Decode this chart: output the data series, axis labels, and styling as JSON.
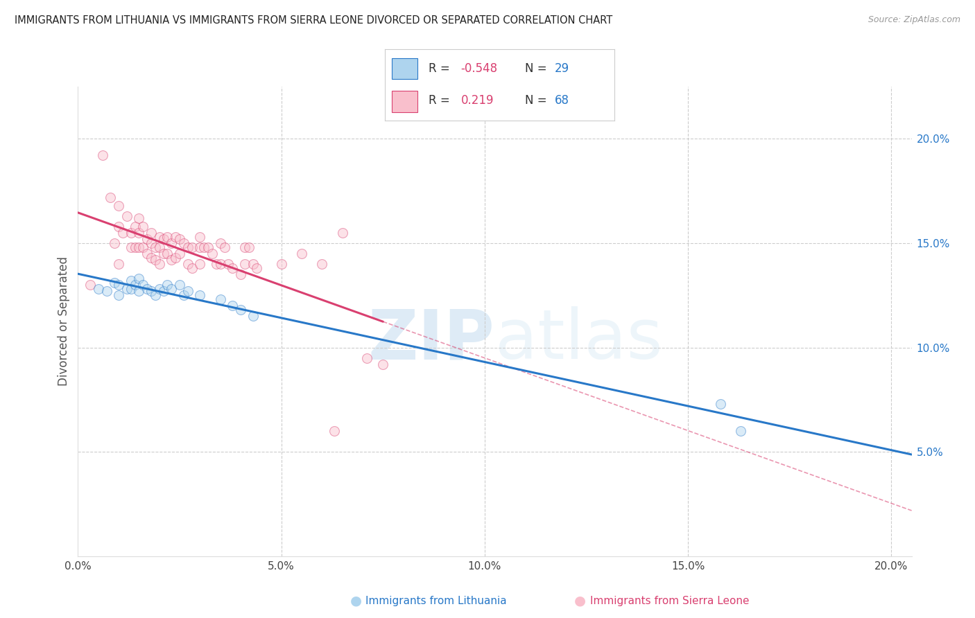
{
  "title": "IMMIGRANTS FROM LITHUANIA VS IMMIGRANTS FROM SIERRA LEONE DIVORCED OR SEPARATED CORRELATION CHART",
  "source": "Source: ZipAtlas.com",
  "ylabel": "Divorced or Separated",
  "watermark_zip": "ZIP",
  "watermark_atlas": "atlas",
  "xlim": [
    0.0,
    0.205
  ],
  "ylim": [
    0.0,
    0.225
  ],
  "xticks": [
    0.0,
    0.05,
    0.1,
    0.15,
    0.2
  ],
  "yticks": [
    0.05,
    0.1,
    0.15,
    0.2
  ],
  "ytick_labels": [
    "5.0%",
    "10.0%",
    "15.0%",
    "20.0%"
  ],
  "xtick_labels": [
    "0.0%",
    "5.0%",
    "10.0%",
    "15.0%",
    "20.0%"
  ],
  "legend_R1": "-0.548",
  "legend_N1": "29",
  "legend_R2": "0.219",
  "legend_N2": "68",
  "color_lithuania_fill": "#aed4ee",
  "color_sierra_leone_fill": "#f9bfcc",
  "color_trend_lithuania": "#2878c8",
  "color_trend_sierra_leone": "#d94070",
  "legend_label1": "Immigrants from Lithuania",
  "legend_label2": "Immigrants from Sierra Leone",
  "background_color": "#ffffff",
  "grid_color": "#cccccc",
  "scatter_alpha": 0.45,
  "scatter_size": 100,
  "lithuania_x": [
    0.005,
    0.007,
    0.009,
    0.01,
    0.01,
    0.012,
    0.013,
    0.013,
    0.014,
    0.015,
    0.015,
    0.016,
    0.017,
    0.018,
    0.019,
    0.02,
    0.021,
    0.022,
    0.023,
    0.025,
    0.026,
    0.027,
    0.03,
    0.035,
    0.038,
    0.04,
    0.043,
    0.158,
    0.163
  ],
  "lithuania_y": [
    0.128,
    0.127,
    0.131,
    0.13,
    0.125,
    0.128,
    0.132,
    0.128,
    0.13,
    0.133,
    0.127,
    0.13,
    0.128,
    0.127,
    0.125,
    0.128,
    0.127,
    0.13,
    0.128,
    0.13,
    0.125,
    0.127,
    0.125,
    0.123,
    0.12,
    0.118,
    0.115,
    0.073,
    0.06
  ],
  "sierra_leone_x": [
    0.003,
    0.006,
    0.008,
    0.009,
    0.01,
    0.01,
    0.01,
    0.011,
    0.012,
    0.013,
    0.013,
    0.014,
    0.014,
    0.015,
    0.015,
    0.015,
    0.016,
    0.016,
    0.017,
    0.017,
    0.018,
    0.018,
    0.018,
    0.019,
    0.019,
    0.02,
    0.02,
    0.02,
    0.021,
    0.021,
    0.022,
    0.022,
    0.023,
    0.023,
    0.024,
    0.024,
    0.025,
    0.025,
    0.026,
    0.027,
    0.027,
    0.028,
    0.028,
    0.03,
    0.03,
    0.03,
    0.031,
    0.032,
    0.033,
    0.034,
    0.035,
    0.035,
    0.036,
    0.037,
    0.038,
    0.04,
    0.041,
    0.041,
    0.042,
    0.043,
    0.044,
    0.05,
    0.055,
    0.06,
    0.063,
    0.065,
    0.071,
    0.075
  ],
  "sierra_leone_y": [
    0.13,
    0.192,
    0.172,
    0.15,
    0.168,
    0.158,
    0.14,
    0.155,
    0.163,
    0.155,
    0.148,
    0.158,
    0.148,
    0.162,
    0.155,
    0.148,
    0.158,
    0.148,
    0.152,
    0.145,
    0.155,
    0.15,
    0.143,
    0.148,
    0.142,
    0.153,
    0.148,
    0.14,
    0.152,
    0.145,
    0.153,
    0.145,
    0.15,
    0.142,
    0.153,
    0.143,
    0.152,
    0.145,
    0.15,
    0.148,
    0.14,
    0.148,
    0.138,
    0.153,
    0.148,
    0.14,
    0.148,
    0.148,
    0.145,
    0.14,
    0.15,
    0.14,
    0.148,
    0.14,
    0.138,
    0.135,
    0.148,
    0.14,
    0.148,
    0.14,
    0.138,
    0.14,
    0.145,
    0.14,
    0.06,
    0.155,
    0.095,
    0.092
  ]
}
